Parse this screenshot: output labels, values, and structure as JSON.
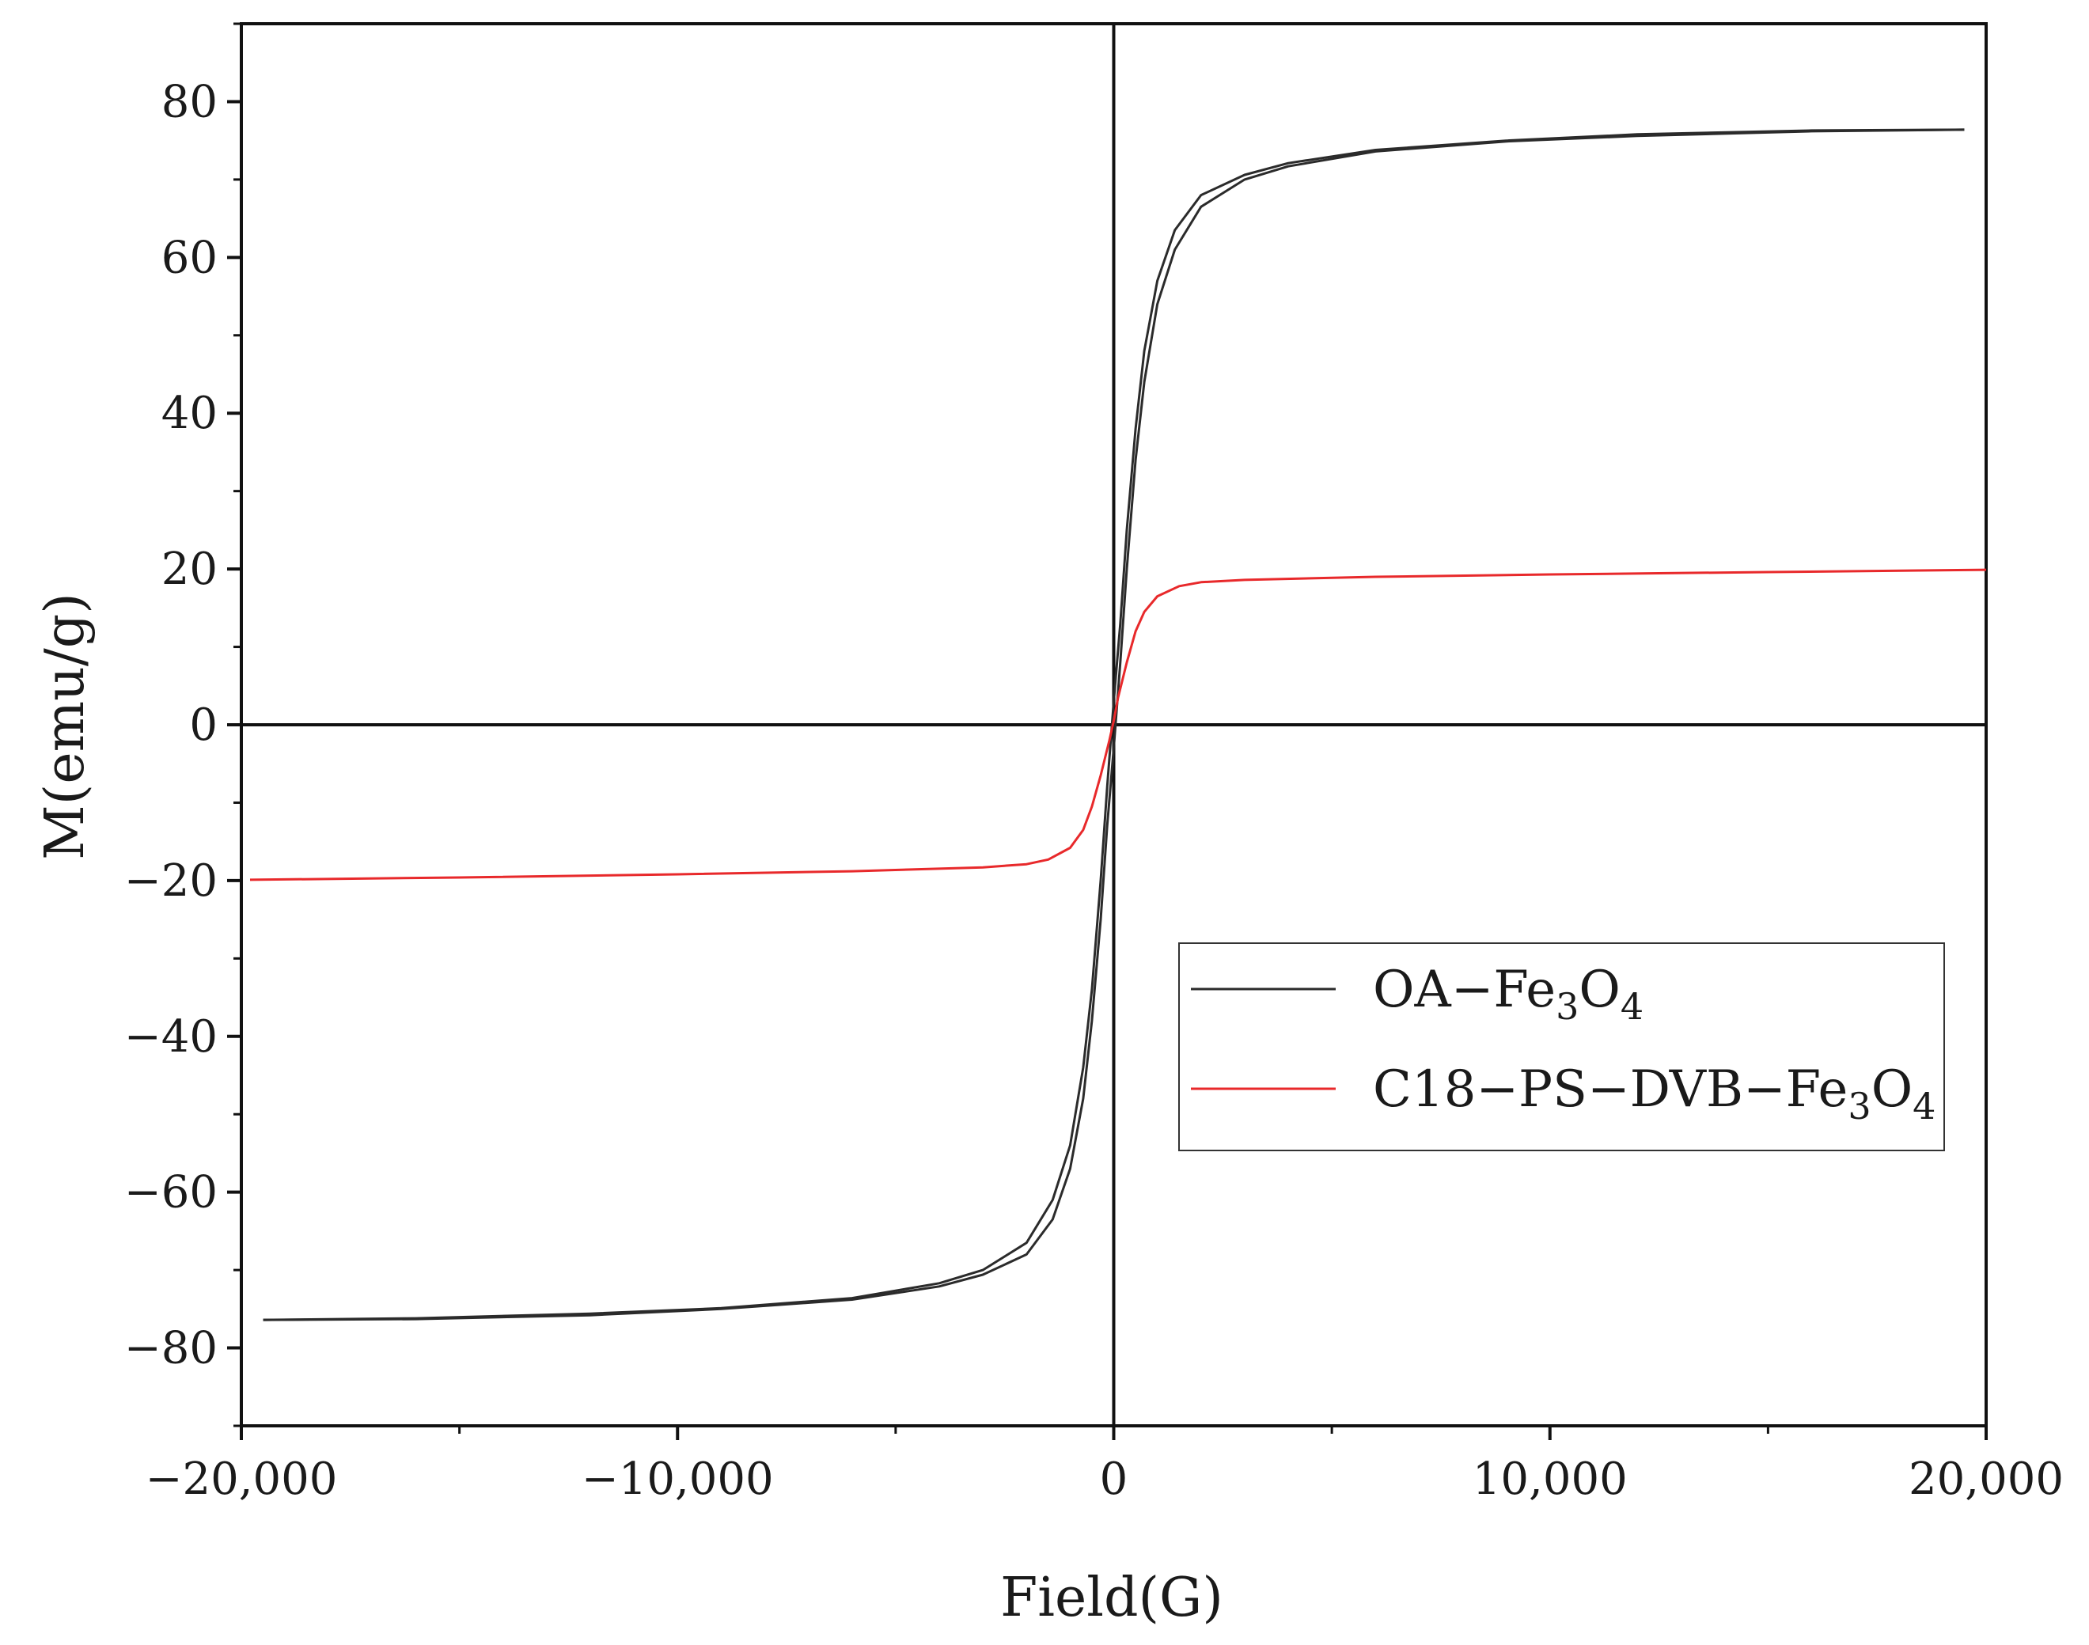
{
  "chart_data": {
    "type": "line",
    "title": "",
    "xlabel": "Field(G)",
    "ylabel": "M(emu/g)",
    "xlim": [
      -20000,
      20000
    ],
    "ylim": [
      -90,
      90
    ],
    "xticks": [
      -20000,
      -10000,
      0,
      10000,
      20000
    ],
    "xtick_labels": [
      "−20,000",
      "−10,000",
      "0",
      "10,000",
      "20,000"
    ],
    "yticks": [
      -80,
      -60,
      -40,
      -20,
      0,
      20,
      40,
      60,
      80
    ],
    "ytick_labels": [
      "−80",
      "−60",
      "−40",
      "−20",
      "0",
      "20",
      "40",
      "60",
      "80"
    ],
    "grid": false,
    "legend_position": "center-right",
    "series": [
      {
        "name": "OA-Fe3O4",
        "legend_main": "OA−Fe",
        "legend_sub1": "3",
        "legend_mid": "O",
        "legend_sub2": "4",
        "color": "#2b2b2b",
        "branch_up": [
          [
            -19500,
            -76.4
          ],
          [
            -16000,
            -76.2
          ],
          [
            -12000,
            -75.6
          ],
          [
            -9000,
            -74.9
          ],
          [
            -6000,
            -73.6
          ],
          [
            -4000,
            -71.7
          ],
          [
            -3000,
            -70.0
          ],
          [
            -2000,
            -66.5
          ],
          [
            -1400,
            -61
          ],
          [
            -1000,
            -54
          ],
          [
            -700,
            -44
          ],
          [
            -500,
            -34
          ],
          [
            -300,
            -20
          ],
          [
            -150,
            -8
          ],
          [
            0,
            3
          ],
          [
            150,
            13
          ],
          [
            300,
            25
          ],
          [
            500,
            38
          ],
          [
            700,
            48
          ],
          [
            1000,
            57
          ],
          [
            1400,
            63.5
          ],
          [
            2000,
            68
          ],
          [
            3000,
            70.6
          ],
          [
            4000,
            72.1
          ],
          [
            6000,
            73.8
          ],
          [
            9000,
            75.0
          ],
          [
            12000,
            75.8
          ],
          [
            16000,
            76.3
          ],
          [
            19500,
            76.4
          ]
        ],
        "branch_down": [
          [
            19500,
            76.4
          ],
          [
            16000,
            76.2
          ],
          [
            12000,
            75.6
          ],
          [
            9000,
            74.9
          ],
          [
            6000,
            73.6
          ],
          [
            4000,
            71.7
          ],
          [
            3000,
            70.0
          ],
          [
            2000,
            66.5
          ],
          [
            1400,
            61
          ],
          [
            1000,
            54
          ],
          [
            700,
            44
          ],
          [
            500,
            34
          ],
          [
            300,
            20
          ],
          [
            150,
            8
          ],
          [
            0,
            -3
          ],
          [
            -150,
            -13
          ],
          [
            -300,
            -25
          ],
          [
            -500,
            -38
          ],
          [
            -700,
            -48
          ],
          [
            -1000,
            -57
          ],
          [
            -1400,
            -63.5
          ],
          [
            -2000,
            -68
          ],
          [
            -3000,
            -70.6
          ],
          [
            -4000,
            -72.1
          ],
          [
            -6000,
            -73.8
          ],
          [
            -9000,
            -75.0
          ],
          [
            -12000,
            -75.8
          ],
          [
            -16000,
            -76.3
          ],
          [
            -19500,
            -76.4
          ]
        ]
      },
      {
        "name": "C18-PS-DVB-Fe3O4",
        "legend_main": "C18−PS−DVB−Fe",
        "legend_sub1": "3",
        "legend_mid": "O",
        "legend_sub2": "4",
        "color": "#e8292b",
        "points": [
          [
            -19800,
            -19.9
          ],
          [
            -15000,
            -19.6
          ],
          [
            -10000,
            -19.2
          ],
          [
            -6000,
            -18.8
          ],
          [
            -3000,
            -18.3
          ],
          [
            -2000,
            -17.9
          ],
          [
            -1500,
            -17.3
          ],
          [
            -1000,
            -15.8
          ],
          [
            -700,
            -13.5
          ],
          [
            -500,
            -10.5
          ],
          [
            -300,
            -6.5
          ],
          [
            -100,
            -2
          ],
          [
            0,
            0.5
          ],
          [
            100,
            3.5
          ],
          [
            300,
            8
          ],
          [
            500,
            12
          ],
          [
            700,
            14.5
          ],
          [
            1000,
            16.5
          ],
          [
            1500,
            17.8
          ],
          [
            2000,
            18.3
          ],
          [
            3000,
            18.6
          ],
          [
            6000,
            19.0
          ],
          [
            10000,
            19.3
          ],
          [
            15000,
            19.6
          ],
          [
            20000,
            19.9
          ]
        ]
      }
    ]
  }
}
